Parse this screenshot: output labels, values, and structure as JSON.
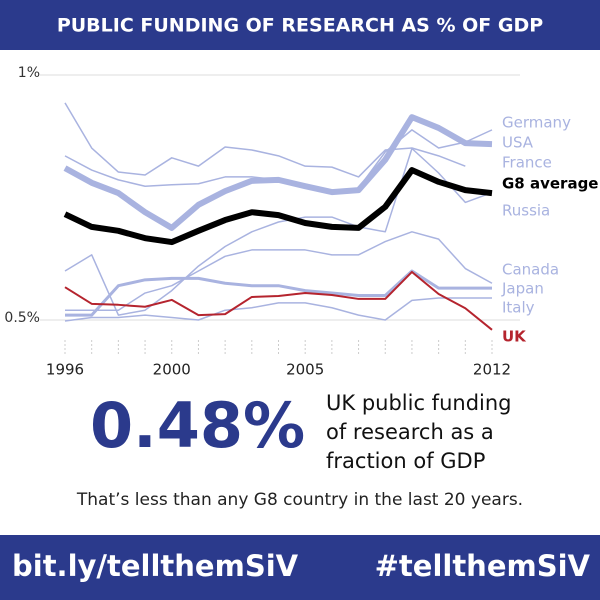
{
  "chart_data": {
    "type": "line",
    "title": "PUBLIC FUNDING OF RESEARCH AS % OF GDP",
    "x": [
      1996,
      1997,
      1998,
      1999,
      2000,
      2001,
      2002,
      2003,
      2004,
      2005,
      2006,
      2007,
      2008,
      2009,
      2010,
      2011,
      2012
    ],
    "xlim": [
      1996,
      2012
    ],
    "xticks": [
      1996,
      2000,
      2005,
      2012
    ],
    "ylim": [
      0.5,
      1
    ],
    "yticks": [
      {
        "value": 0.5,
        "label": "0.5%"
      },
      {
        "value": 1,
        "label": "1%"
      }
    ],
    "grid": true,
    "series": [
      {
        "name": "France",
        "color": "#a9b3e0",
        "width": 1.5,
        "values": [
          0.943,
          0.851,
          0.802,
          0.796,
          0.831,
          0.814,
          0.853,
          0.847,
          0.835,
          0.814,
          0.812,
          0.792,
          0.847,
          0.851,
          0.835,
          0.814,
          null
        ]
      },
      {
        "name": "Russia",
        "color": "#a9b3e0",
        "width": 1.5,
        "values": [
          0.6,
          0.633,
          0.51,
          0.52,
          0.56,
          0.61,
          0.65,
          0.68,
          0.7,
          0.71,
          0.71,
          0.69,
          0.68,
          0.85,
          0.8,
          0.74,
          0.76
        ]
      },
      {
        "name": "Canada",
        "color": "#a9b3e0",
        "width": 1.5,
        "values": [
          0.52,
          0.52,
          0.52,
          0.555,
          0.57,
          0.6,
          0.63,
          0.643,
          0.643,
          0.643,
          0.633,
          0.633,
          0.66,
          0.68,
          0.665,
          0.605,
          0.575
        ]
      },
      {
        "name": "Japan",
        "color": "#a9b3e0",
        "width": 3,
        "values": [
          0.51,
          0.51,
          0.57,
          0.582,
          0.585,
          0.585,
          0.575,
          0.57,
          0.57,
          0.56,
          0.555,
          0.55,
          0.55,
          0.6,
          0.565,
          0.565,
          0.565
        ]
      },
      {
        "name": "Italy",
        "color": "#a9b3e0",
        "width": 1.5,
        "values": [
          0.498,
          0.505,
          0.505,
          0.51,
          0.505,
          0.5,
          0.52,
          0.525,
          0.535,
          0.535,
          0.525,
          0.51,
          0.5,
          0.54,
          0.545,
          0.545,
          0.545
        ]
      },
      {
        "name": "USA",
        "color": "#a9b3e0",
        "width": 1.5,
        "values": [
          0.835,
          0.806,
          0.786,
          0.773,
          0.776,
          0.778,
          0.792,
          0.792,
          0.786,
          0.769,
          0.763,
          0.769,
          0.843,
          0.888,
          0.851,
          0.863,
          0.888
        ]
      },
      {
        "name": "Germany",
        "color": "#a9b3e0",
        "width": 6,
        "values": [
          0.81,
          0.78,
          0.759,
          0.72,
          0.688,
          0.735,
          0.763,
          0.784,
          0.786,
          0.773,
          0.761,
          0.765,
          0.827,
          0.914,
          0.892,
          0.861,
          0.859
        ]
      },
      {
        "name": "G8 average",
        "color": "#000000",
        "width": 6,
        "values": [
          0.716,
          0.69,
          0.682,
          0.667,
          0.659,
          0.682,
          0.704,
          0.72,
          0.714,
          0.698,
          0.69,
          0.688,
          0.731,
          0.806,
          0.782,
          0.765,
          0.759
        ]
      },
      {
        "name": "UK",
        "color": "#b5242e",
        "width": 2,
        "values": [
          0.567,
          0.533,
          0.531,
          0.527,
          0.541,
          0.51,
          0.512,
          0.547,
          0.549,
          0.555,
          0.551,
          0.543,
          0.543,
          0.598,
          0.553,
          0.524,
          0.48
        ]
      }
    ]
  },
  "headline": {
    "figure": "0.48%",
    "caption": [
      "UK public funding",
      "of research as a",
      "fraction of GDP"
    ]
  },
  "note": "That’s less than any G8 country in the last 20 years.",
  "footer": {
    "link": "bit.ly/tellthemSiV",
    "hashtag": "#tellthemSiV"
  }
}
